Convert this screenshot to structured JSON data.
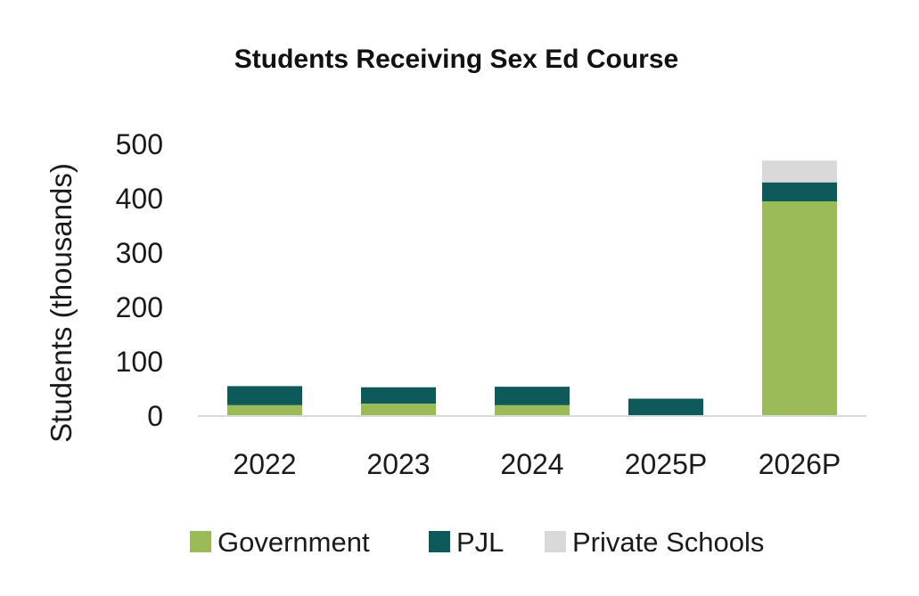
{
  "chart_data": {
    "type": "bar",
    "stacked": true,
    "title": "Students Receiving Sex Ed Course",
    "xlabel": "",
    "ylabel": "Students (thousands)",
    "ylim": [
      0,
      500
    ],
    "yticks": [
      "0",
      "100",
      "200",
      "300",
      "400",
      "500"
    ],
    "categories": [
      "2022",
      "2023",
      "2024",
      "2025P",
      "2026P"
    ],
    "series": [
      {
        "name": "Government",
        "color": "#9bbb59",
        "values": [
          20,
          23,
          20,
          0,
          395
        ]
      },
      {
        "name": "PJL",
        "color": "#0e5a5a",
        "values": [
          35,
          30,
          34,
          32,
          35
        ]
      },
      {
        "name": "Private Schools",
        "color": "#d9d9d9",
        "values": [
          0,
          0,
          0,
          0,
          40
        ]
      }
    ],
    "legend_position": "bottom",
    "grid": false
  }
}
